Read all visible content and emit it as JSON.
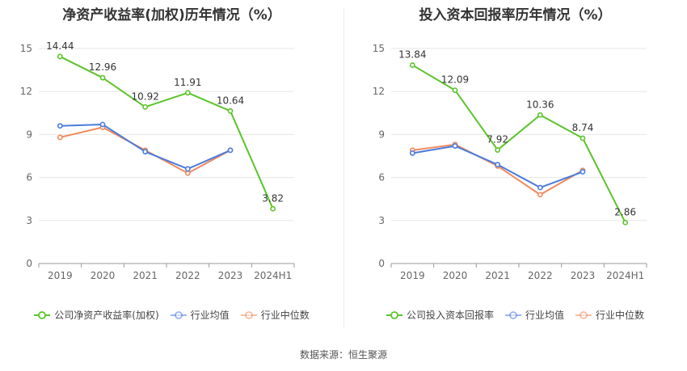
{
  "source_text": "数据来源：恒生聚源",
  "chart_data": [
    {
      "type": "line",
      "title": "净资产收益率(加权)历年情况（%）",
      "categories": [
        "2019",
        "2020",
        "2021",
        "2022",
        "2023",
        "2024H1"
      ],
      "ylim": [
        0,
        15
      ],
      "yticks": [
        0,
        3,
        6,
        9,
        12,
        15
      ],
      "grid": true,
      "legend_position": "bottom",
      "series": [
        {
          "name": "公司净资产收益率(加权)",
          "color": "#5bc42b",
          "values": [
            14.44,
            12.96,
            10.92,
            11.91,
            10.64,
            3.82
          ],
          "labels": [
            "14.44",
            "12.96",
            "10.92",
            "11.91",
            "10.64",
            "3.82"
          ]
        },
        {
          "name": "行业均值",
          "color": "#4a7bdc",
          "values": [
            9.6,
            9.7,
            7.8,
            6.6,
            7.9,
            null
          ]
        },
        {
          "name": "行业中位数",
          "color": "#f08a5d",
          "values": [
            8.8,
            9.5,
            7.9,
            6.3,
            7.9,
            null
          ]
        }
      ]
    },
    {
      "type": "line",
      "title": "投入资本回报率历年情况（%）",
      "categories": [
        "2019",
        "2020",
        "2021",
        "2022",
        "2023",
        "2024H1"
      ],
      "ylim": [
        0,
        15
      ],
      "yticks": [
        0,
        3,
        6,
        9,
        12,
        15
      ],
      "grid": true,
      "legend_position": "bottom",
      "series": [
        {
          "name": "公司投入资本回报率",
          "color": "#5bc42b",
          "values": [
            13.84,
            12.09,
            7.92,
            10.36,
            8.74,
            2.86
          ],
          "labels": [
            "13.84",
            "12.09",
            "7.92",
            "10.36",
            "8.74",
            "2.86"
          ]
        },
        {
          "name": "行业均值",
          "color": "#4a7bdc",
          "values": [
            7.7,
            8.2,
            6.9,
            5.3,
            6.4,
            null
          ]
        },
        {
          "name": "行业中位数",
          "color": "#f08a5d",
          "values": [
            7.9,
            8.3,
            6.8,
            4.8,
            6.5,
            null
          ]
        }
      ]
    }
  ]
}
